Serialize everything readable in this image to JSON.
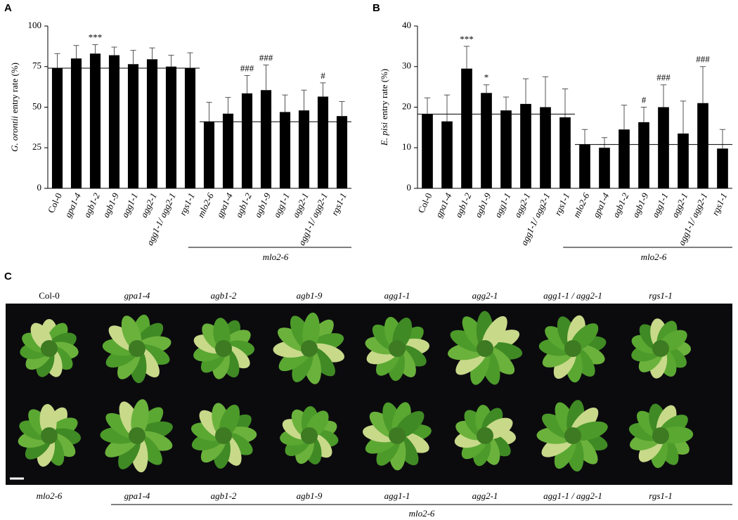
{
  "chart_data": [
    {
      "type": "bar",
      "panel": "A",
      "ylabel": [
        "G. orontii",
        "entry rate (%)"
      ],
      "categories": [
        "Col-0",
        "gpa1-4",
        "agb1-2",
        "agb1-9",
        "agg1-1",
        "agg2-1",
        "agg1-1/ agg2-1",
        "rgs1-1",
        "mlo2-6",
        "gpa1-4",
        "agb1-2",
        "agb1-9",
        "agg1-1",
        "agg2-1",
        "agg1-1/ agg2-1",
        "rgs1-1"
      ],
      "values": [
        74,
        80,
        83,
        82,
        76.5,
        79.5,
        75,
        74,
        41,
        46,
        58.5,
        60.5,
        47,
        48,
        56.5,
        44.5
      ],
      "errors": [
        9,
        8,
        5.5,
        5,
        8.5,
        7,
        7,
        9.5,
        12,
        10,
        11,
        15.5,
        10.5,
        12.5,
        8.5,
        9
      ],
      "annotations": [
        null,
        null,
        "***",
        null,
        null,
        null,
        null,
        null,
        null,
        null,
        "###",
        "###",
        null,
        null,
        "#",
        null
      ],
      "reference_lines": [
        74,
        41
      ],
      "group_label": "mlo2-6",
      "color": "#000000",
      "ylim": [
        0,
        100
      ],
      "yticks": [
        0,
        25,
        50,
        75,
        100
      ]
    },
    {
      "type": "bar",
      "panel": "B",
      "ylabel": [
        "E. pisi",
        "entry rate (%)"
      ],
      "categories": [
        "Col-0",
        "gpa1-4",
        "agb1-2",
        "agb1-9",
        "agg1-1",
        "agg2-1",
        "agg1-1/ agg2-1",
        "rgs1-1",
        "mlo2-6",
        "gpa1-4",
        "agb1-2",
        "agb1-9",
        "agg1-1",
        "agg2-1",
        "agg1-1/ agg2-1",
        "rgs1-1"
      ],
      "values": [
        18.3,
        16.5,
        29.5,
        23.5,
        19.2,
        20.8,
        20,
        17.5,
        10.8,
        10,
        14.5,
        16.3,
        20,
        13.5,
        21,
        9.8
      ],
      "errors": [
        4,
        6.5,
        5.5,
        2,
        3.3,
        6.2,
        7.5,
        7,
        3.7,
        2.5,
        6,
        3.7,
        5.5,
        8,
        9,
        4.7
      ],
      "annotations": [
        null,
        null,
        "***",
        "*",
        null,
        null,
        null,
        null,
        null,
        null,
        null,
        "#",
        "###",
        null,
        "###",
        null
      ],
      "reference_lines": [
        18.3,
        10.8
      ],
      "group_label": "mlo2-6",
      "color": "#000000",
      "ylim": [
        0,
        40
      ],
      "yticks": [
        0,
        10,
        20,
        30,
        40
      ]
    }
  ],
  "panel_c": {
    "panel": "C",
    "top_labels": [
      "Col-0",
      "gpa1-4",
      "agb1-2",
      "agb1-9",
      "agg1-1",
      "agg2-1",
      "agg1-1 / agg2-1",
      "rgs1-1"
    ],
    "bottom_labels": [
      "mlo2-6",
      "gpa1-4",
      "agb1-2",
      "agb1-9",
      "agg1-1",
      "agg2-1",
      "agg1-1 / agg2-1",
      "rgs1-1"
    ],
    "group_label": "mlo2-6"
  }
}
